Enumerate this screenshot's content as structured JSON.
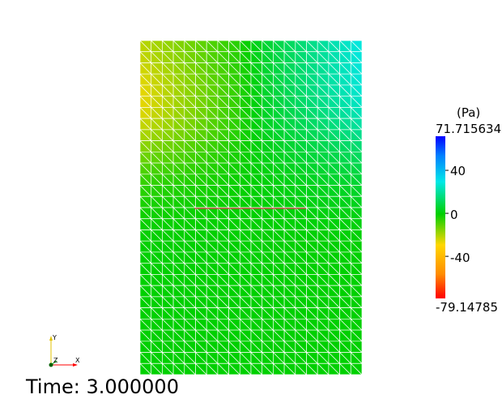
{
  "scalar_bar": {
    "unit": "(Pa)",
    "max_label": "71.715634",
    "min_label": "-79.14785",
    "min": -79.14785,
    "max": 71.715634,
    "ticks": [
      {
        "value": 40,
        "label": "40"
      },
      {
        "value": 0,
        "label": "0"
      },
      {
        "value": -40,
        "label": "-40"
      }
    ],
    "colors": [
      "#ff0000",
      "#ff8c00",
      "#ffd700",
      "#00d000",
      "#00e8e8",
      "#0080ff",
      "#0000ff"
    ]
  },
  "axes": {
    "y": "Y",
    "z": "Z",
    "x": "X"
  },
  "time_label": "Time: 3.000000",
  "mesh": {
    "edge_color": "#ffffff",
    "line_color": "#cc3333"
  }
}
